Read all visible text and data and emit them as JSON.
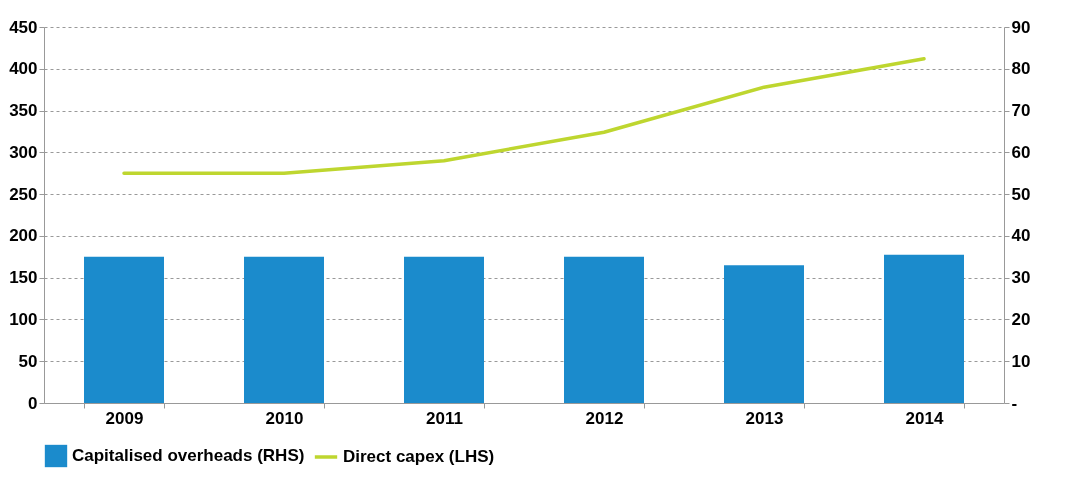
{
  "chart_data": {
    "type": "bar",
    "categories": [
      "2009",
      "2010",
      "2011",
      "2012",
      "2013",
      "2014"
    ],
    "series": [
      {
        "name": "Capitalised overheads (RHS)",
        "axis": "y2",
        "color": "#1b8bcc",
        "values": [
          35,
          35,
          35,
          35,
          33,
          35.5
        ]
      },
      {
        "name": "Direct capex (LHS)",
        "type": "line",
        "color": "#bed62f",
        "values": [
          275,
          275,
          290,
          324,
          378,
          412
        ]
      }
    ],
    "ylim": [
      0,
      450
    ],
    "yticks": [
      0,
      50,
      100,
      150,
      200,
      250,
      300,
      350,
      400,
      450
    ],
    "y2lim": [
      0,
      90
    ],
    "y2ticks": [
      {
        "value": 0,
        "label": "-"
      },
      10,
      20,
      30,
      40,
      50,
      60,
      70,
      80,
      90
    ],
    "grid": "y",
    "legend": "bottom"
  }
}
